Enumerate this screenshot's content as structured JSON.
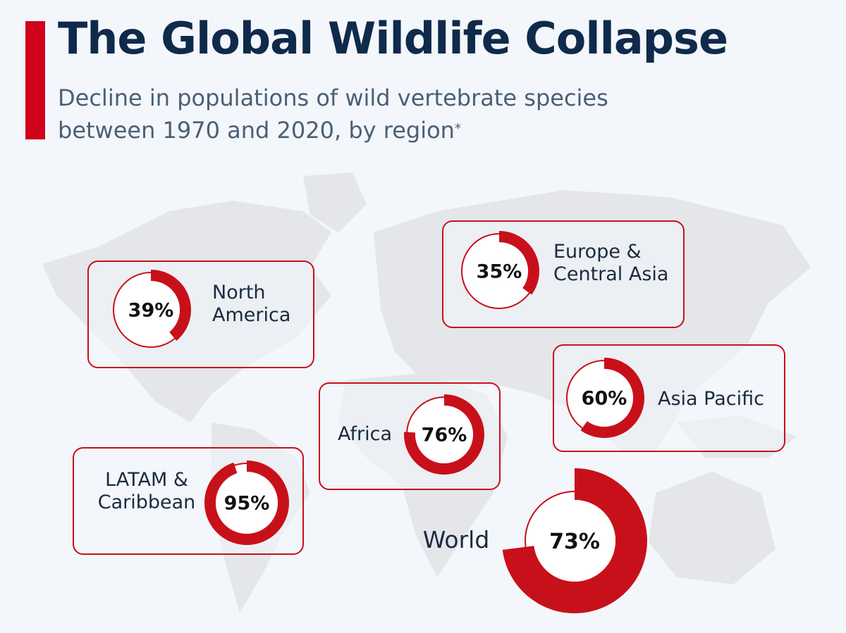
{
  "header": {
    "title": "The Global Wildlife Collapse",
    "subtitle_line1": "Decline in populations of wild vertebrate species",
    "subtitle_line2": "between 1970 and 2020, by region",
    "footnote_marker": "*"
  },
  "colors": {
    "accent": "#c8101b",
    "title": "#0f2a4a",
    "map": "#e4e6ea"
  },
  "chart_data": {
    "type": "donut",
    "title": "The Global Wildlife Collapse",
    "unit": "%",
    "regions": [
      {
        "id": "north-america",
        "label_lines": [
          "North",
          "America"
        ],
        "value": 39
      },
      {
        "id": "europe-central-asia",
        "label_lines": [
          "Europe &",
          "Central Asia"
        ],
        "value": 35
      },
      {
        "id": "asia-pacific",
        "label_lines": [
          "Asia Pacific"
        ],
        "value": 60
      },
      {
        "id": "africa",
        "label_lines": [
          "Africa"
        ],
        "value": 76
      },
      {
        "id": "latam-caribbean",
        "label_lines": [
          "LATAM &",
          "Caribbean"
        ],
        "value": 95
      },
      {
        "id": "world",
        "label_lines": [
          "World"
        ],
        "value": 73
      }
    ]
  }
}
